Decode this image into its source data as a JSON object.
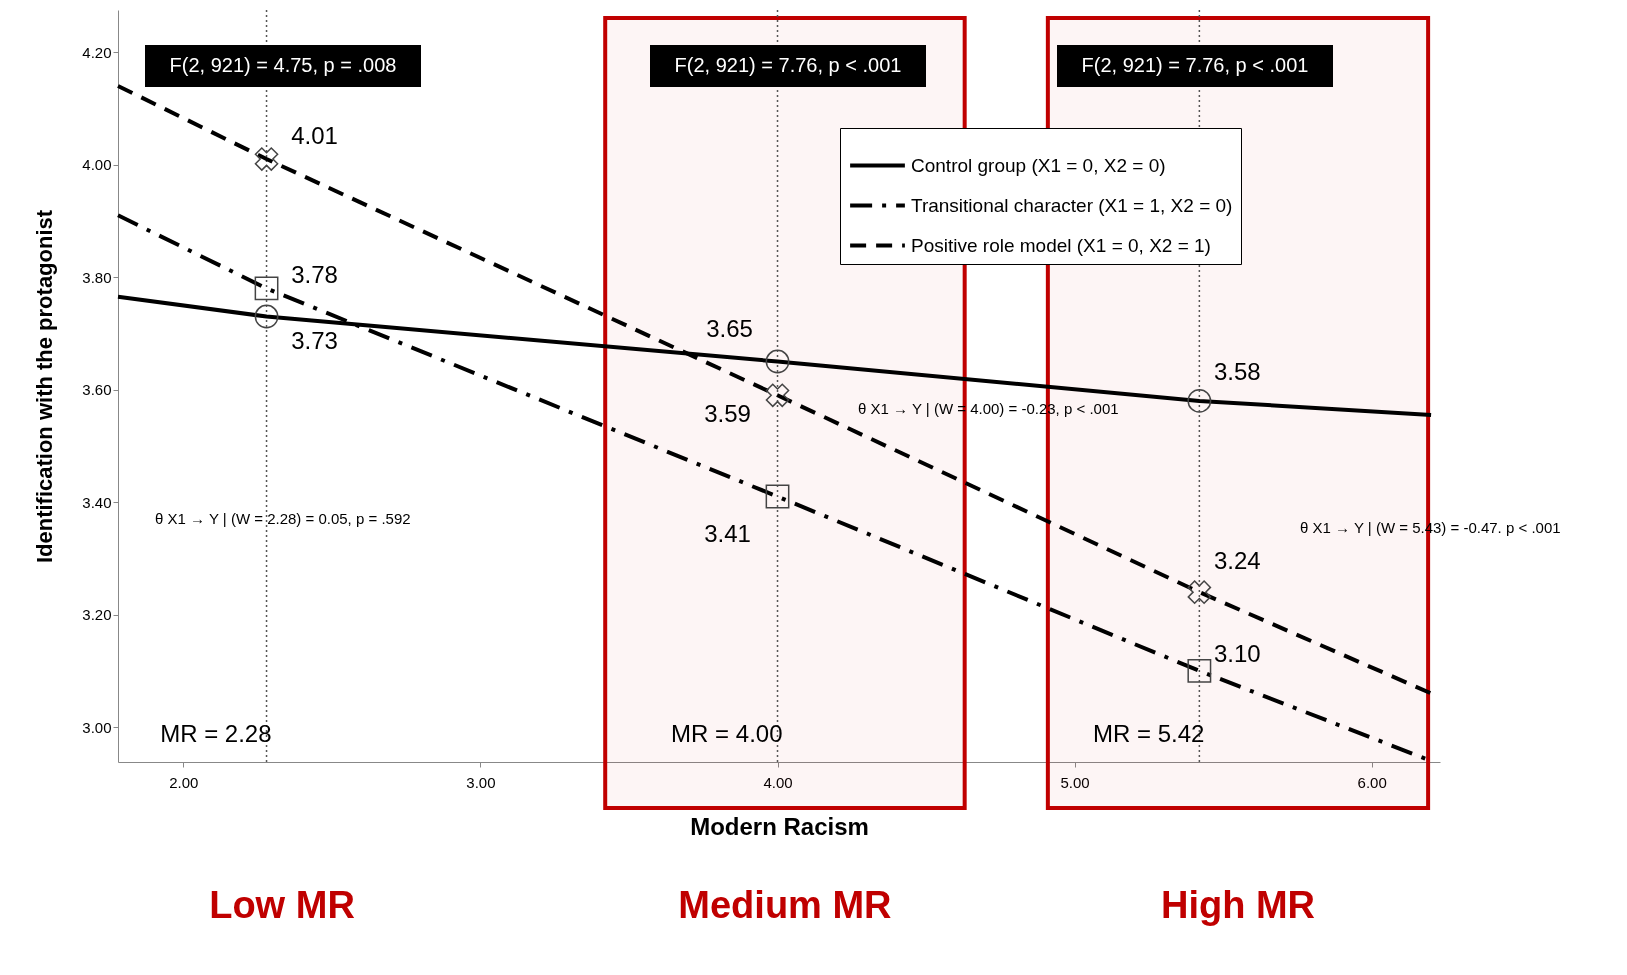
{
  "chart_data": {
    "type": "line",
    "xlabel": "Modern Racism",
    "ylabel": "Identification with the protagonist",
    "xlim": [
      1.78,
      6.23
    ],
    "ylim": [
      2.938,
      4.275
    ],
    "xticks": [
      {
        "value": 2,
        "label": "2.00"
      },
      {
        "value": 3,
        "label": "3.00"
      },
      {
        "value": 4,
        "label": "4.00"
      },
      {
        "value": 5,
        "label": "5.00"
      },
      {
        "value": 6,
        "label": "6.00"
      }
    ],
    "yticks": [
      {
        "value": 3,
        "label": "3.00"
      },
      {
        "value": 3.2,
        "label": "3.20"
      },
      {
        "value": 3.4,
        "label": "3.40"
      },
      {
        "value": 3.6,
        "label": "3.60"
      },
      {
        "value": 3.8,
        "label": "3.80"
      },
      {
        "value": 4,
        "label": "4.00"
      },
      {
        "value": 4.2,
        "label": "4.20"
      }
    ],
    "grid": false,
    "legend": "top right",
    "series": [
      {
        "name": "Control group (X1 = 0, X2 = 0)",
        "color": "#000000",
        "line_style": "solid",
        "marker": "none",
        "x": [
          1.78,
          2.28,
          4.0,
          5.42,
          6.2
        ],
        "values": [
          3.765,
          3.73,
          3.65,
          3.58,
          3.555
        ]
      },
      {
        "name": "Transitional character (X1 = 1, X2 = 0)",
        "color": "#000000",
        "line_style": "dashdot",
        "marker": "none",
        "x": [
          1.78,
          2.28,
          4.0,
          5.42,
          6.2
        ],
        "values": [
          3.91,
          3.78,
          3.41,
          3.1,
          2.94
        ]
      },
      {
        "name": "Positive role model (X1 = 0, X2 = 1)",
        "color": "#000000",
        "line_style": "dashed",
        "marker": "none",
        "x": [
          1.78,
          2.28,
          4.0,
          5.42,
          6.2
        ],
        "values": [
          4.14,
          4.01,
          3.59,
          3.24,
          3.06
        ]
      },
      {
        "type": "scatter",
        "color": "#444444",
        "marker": "circle",
        "x": [
          2.28,
          4.0,
          5.42
        ],
        "values": [
          3.73,
          3.65,
          3.58
        ],
        "value_labels": [
          "3.73",
          "3.65",
          "3.58"
        ]
      },
      {
        "type": "scatter",
        "color": "#444444",
        "marker": "square",
        "x": [
          2.28,
          4.0,
          5.42
        ],
        "values": [
          3.78,
          3.41,
          3.1
        ],
        "value_labels": [
          "3.78",
          "3.41",
          "3.10"
        ]
      },
      {
        "type": "scatter",
        "color": "#444444",
        "marker": "cross",
        "x": [
          2.28,
          4.0,
          5.42
        ],
        "values": [
          4.01,
          3.59,
          3.24
        ],
        "value_labels": [
          "4.01",
          "3.59",
          "3.24"
        ]
      }
    ],
    "ref_lines": [
      {
        "axis": "x",
        "value": 2.28,
        "label": "MR = 2.28",
        "line_style": "dotted",
        "color": "#555555"
      },
      {
        "axis": "x",
        "value": 4.0,
        "label": "MR = 4.00",
        "line_style": "dotted",
        "color": "#555555"
      },
      {
        "axis": "x",
        "value": 5.42,
        "label": "MR = 5.42",
        "line_style": "dotted",
        "color": "#555555"
      }
    ],
    "bands": [
      {
        "axis": "x",
        "from": 3.42,
        "to": 4.63,
        "label": "Medium MR",
        "color": "#c00000"
      },
      {
        "axis": "x",
        "from": 4.91,
        "to": 6.19,
        "label": "High MR",
        "color": "#c00000"
      }
    ],
    "annotations": [
      "F(2, 921) = 4.75, p = .008",
      "F(2, 921) = 7.76, p < .001",
      "F(2, 921) = 7.76, p < .001",
      "θ X1 → Y | (W = 2.28) = 0.05, p = .592",
      "θ X1 → Y | (W = 4.00) = -0.23, p < .001",
      "θ X1 → Y | (W = 5.43) = -0.47. p < .001",
      "Low MR"
    ]
  }
}
